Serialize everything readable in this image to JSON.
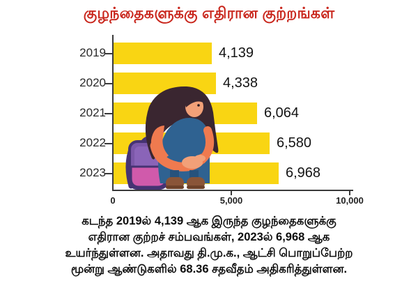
{
  "title": {
    "text": "குழந்தைகளுக்கு எதிரான குற்றங்கள்",
    "color": "#c9271d"
  },
  "chart_data": {
    "type": "bar",
    "orientation": "horizontal",
    "title": "குழந்தைகளுக்கு எதிரான குற்றங்கள்",
    "categories": [
      "2019",
      "2020",
      "2021",
      "2022",
      "2023"
    ],
    "values": [
      4139,
      4338,
      6064,
      6580,
      6968
    ],
    "value_labels": [
      "4,139",
      "4,338",
      "6,064",
      "6,580",
      "6,968"
    ],
    "bar_color": "#f9d513",
    "xlabel": "",
    "ylabel": "",
    "xlim": [
      0,
      10000
    ],
    "x_ticks": [
      {
        "value": 0,
        "label": "0"
      },
      {
        "value": 5000,
        "label": "5,000"
      },
      {
        "value": 10000,
        "label": "10,000"
      }
    ],
    "grid": false,
    "legend": "none"
  },
  "caption": {
    "lines": [
      "கடந்த 2019ல் 4,139 ஆக இருந்த குழந்தைகளுக்கு",
      "எதிரான குற்றச் சம்பவங்கள், 2023ல் 6,968 ஆக",
      "உயர்ந்துள்ளன. அதாவது தி.மு.க., ஆட்சி பொறுப்பேற்ற",
      "மூன்று ஆண்டுகளில் 68.36 சதவீதம் அதிகரித்துள்ளன."
    ]
  },
  "illustration": {
    "description": "sad girl sitting hugging her knees beside a school backpack",
    "colors": {
      "hair": "#3a2630",
      "skin": "#f2a078",
      "sleeve": "#ef7a4f",
      "outfit": "#2f6291",
      "outfit_dark": "#27527c",
      "backpack_body": "#7b57a8",
      "backpack_inner": "#8a64b8",
      "backpack_pocket": "#d05aab",
      "backpack_outline": "#463373",
      "shoes": "#8a5538",
      "shoes_sole": "#6e4229"
    }
  }
}
